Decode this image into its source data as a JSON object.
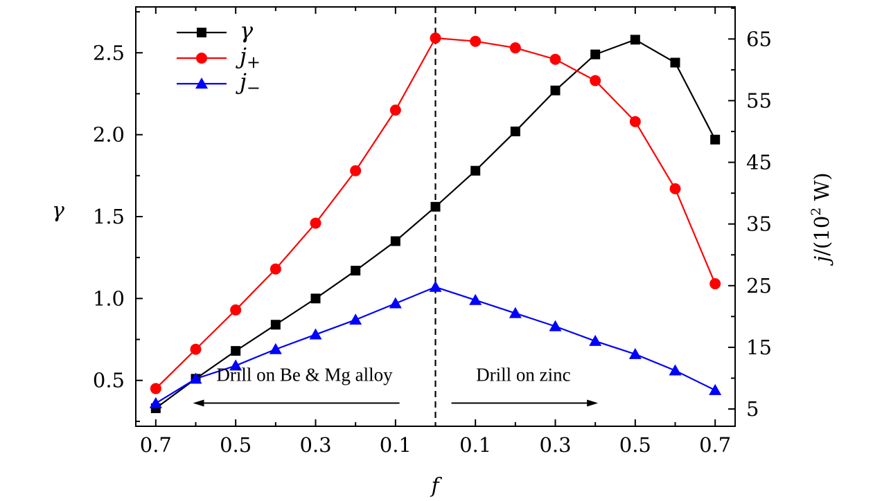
{
  "chart_data": {
    "type": "line",
    "title": "",
    "xlabel": "f",
    "ylabel_left": "γ",
    "ylabel_right": {
      "prefix": "j",
      "rest": "/(10",
      "sup": "2",
      "unit": " W)"
    },
    "x": [
      -0.7,
      -0.6,
      -0.5,
      -0.4,
      -0.3,
      -0.2,
      -0.1,
      0,
      0.1,
      0.2,
      0.3,
      0.4,
      0.5,
      0.6,
      0.7
    ],
    "xlim": [
      -0.75,
      0.75
    ],
    "x_ticks": [
      -0.7,
      -0.5,
      -0.3,
      -0.1,
      0.1,
      0.3,
      0.5,
      0.7
    ],
    "x_tick_labels": [
      "0.7",
      "0.5",
      "0.3",
      "0.1",
      "0.1",
      "0.3",
      "0.5",
      "0.7"
    ],
    "ylim_left": [
      0.22,
      2.78
    ],
    "y_ticks_left": [
      0.5,
      1.0,
      1.5,
      2.0,
      2.5
    ],
    "y_tick_labels_left": [
      "0.5",
      "1.0",
      "1.5",
      "2.0",
      "2.5"
    ],
    "ylim_right": [
      2.2,
      70.2
    ],
    "y_ticks_right": [
      5,
      15,
      25,
      35,
      45,
      55,
      65
    ],
    "y_tick_labels_right": [
      "5",
      "15",
      "25",
      "35",
      "45",
      "55",
      "65"
    ],
    "series": [
      {
        "name": "γ",
        "legend_base": "γ",
        "legend_sub": "",
        "axis": "left",
        "color": "#000000",
        "marker": "square",
        "values": [
          0.33,
          0.51,
          0.68,
          0.84,
          1.0,
          1.17,
          1.35,
          1.56,
          1.78,
          2.02,
          2.27,
          2.49,
          2.58,
          2.44,
          1.97
        ]
      },
      {
        "name": "j+",
        "legend_base": "j",
        "legend_sub": "+",
        "axis": "left",
        "color": "#ff0000",
        "marker": "circle",
        "values": [
          0.45,
          0.69,
          0.93,
          1.18,
          1.46,
          1.78,
          2.15,
          2.59,
          2.57,
          2.53,
          2.46,
          2.33,
          2.08,
          1.67,
          1.09
        ]
      },
      {
        "name": "j−",
        "legend_base": "j",
        "legend_sub": "−",
        "axis": "left",
        "color": "#0000ff",
        "marker": "triangle",
        "values": [
          0.36,
          0.51,
          0.59,
          0.69,
          0.78,
          0.87,
          0.97,
          1.07,
          0.99,
          0.91,
          0.83,
          0.74,
          0.66,
          0.56,
          0.44
        ]
      }
    ],
    "legend_position": "top-left",
    "reference_line": {
      "x": 0,
      "style": "dashed"
    },
    "annotations": [
      {
        "text": "Drill on Be & Mg alloy",
        "side": "left",
        "x_from": -0.6,
        "x_to": -0.09,
        "arrow": "left",
        "y": 0.48
      },
      {
        "text": "Drill on zinc",
        "side": "right",
        "x_from": 0.04,
        "x_to": 0.4,
        "arrow": "right",
        "y": 0.48
      }
    ]
  }
}
